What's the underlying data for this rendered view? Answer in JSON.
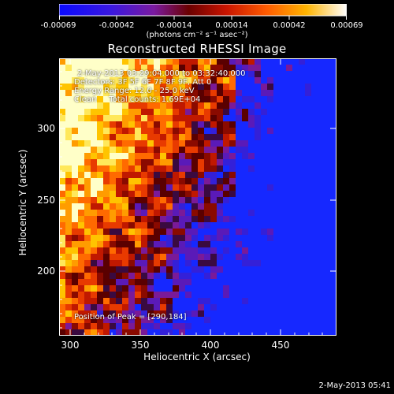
{
  "colorbar": {
    "tick_labels": [
      "-0.00069",
      "-0.00042",
      "-0.00014",
      "0.00014",
      "0.00042",
      "0.00069"
    ],
    "units_label": "(photons cm⁻² s⁻¹ asec⁻²)"
  },
  "plot": {
    "title": "Reconstructed RHESSI Image",
    "time_range": "2-May-2013 03:29:04.000 to 03:32:40.000",
    "detectors": "Detectors: 3F 5F 6F 7F 8F 9F, Att 0",
    "energy_range": "Energy Range: 12.0 - 25.0 keV",
    "method_counts": "Clean     Total counts: 1.69E+04",
    "peak_position": "Position of Peak = [290,184]",
    "xlabel": "Heliocentric X (arcsec)",
    "ylabel": "Heliocentric Y (arcsec)",
    "x_ticks": [
      "300",
      "350",
      "400",
      "450"
    ],
    "y_ticks": [
      "200",
      "250",
      "300"
    ]
  },
  "timestamp": "2-May-2013 05:41"
}
